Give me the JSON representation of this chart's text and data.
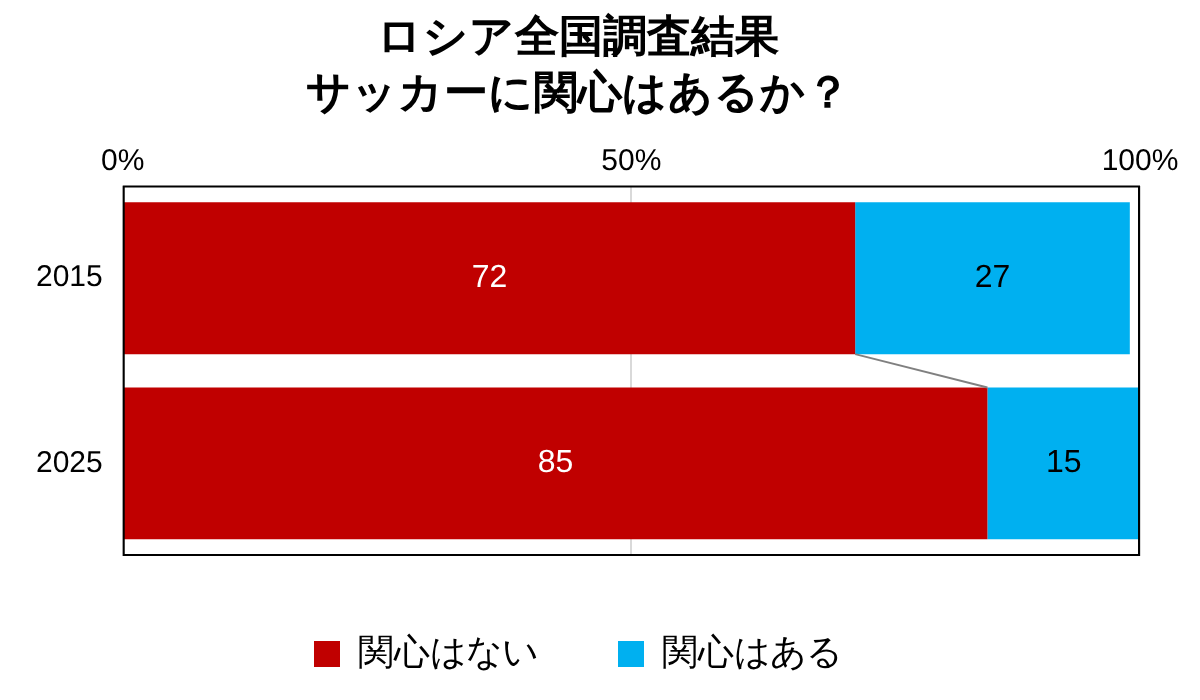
{
  "chart_data": {
    "type": "bar",
    "orientation": "horizontal",
    "stacked": true,
    "title": "ロシア全国調査結果",
    "subtitle": "サッカーに関心はあるか？",
    "categories": [
      "2015",
      "2025"
    ],
    "series": [
      {
        "name": "関心はない",
        "color": "#c00000",
        "values": [
          72,
          85
        ]
      },
      {
        "name": "関心はある",
        "color": "#00b0f0",
        "values": [
          27,
          15
        ]
      }
    ],
    "xlim": [
      0,
      100
    ],
    "xticks": [
      {
        "value": 0,
        "label": "0%"
      },
      {
        "value": 50,
        "label": "50%"
      },
      {
        "value": 100,
        "label": "100%"
      }
    ],
    "grid": "x",
    "legend": "bottom",
    "data_labels": true
  }
}
